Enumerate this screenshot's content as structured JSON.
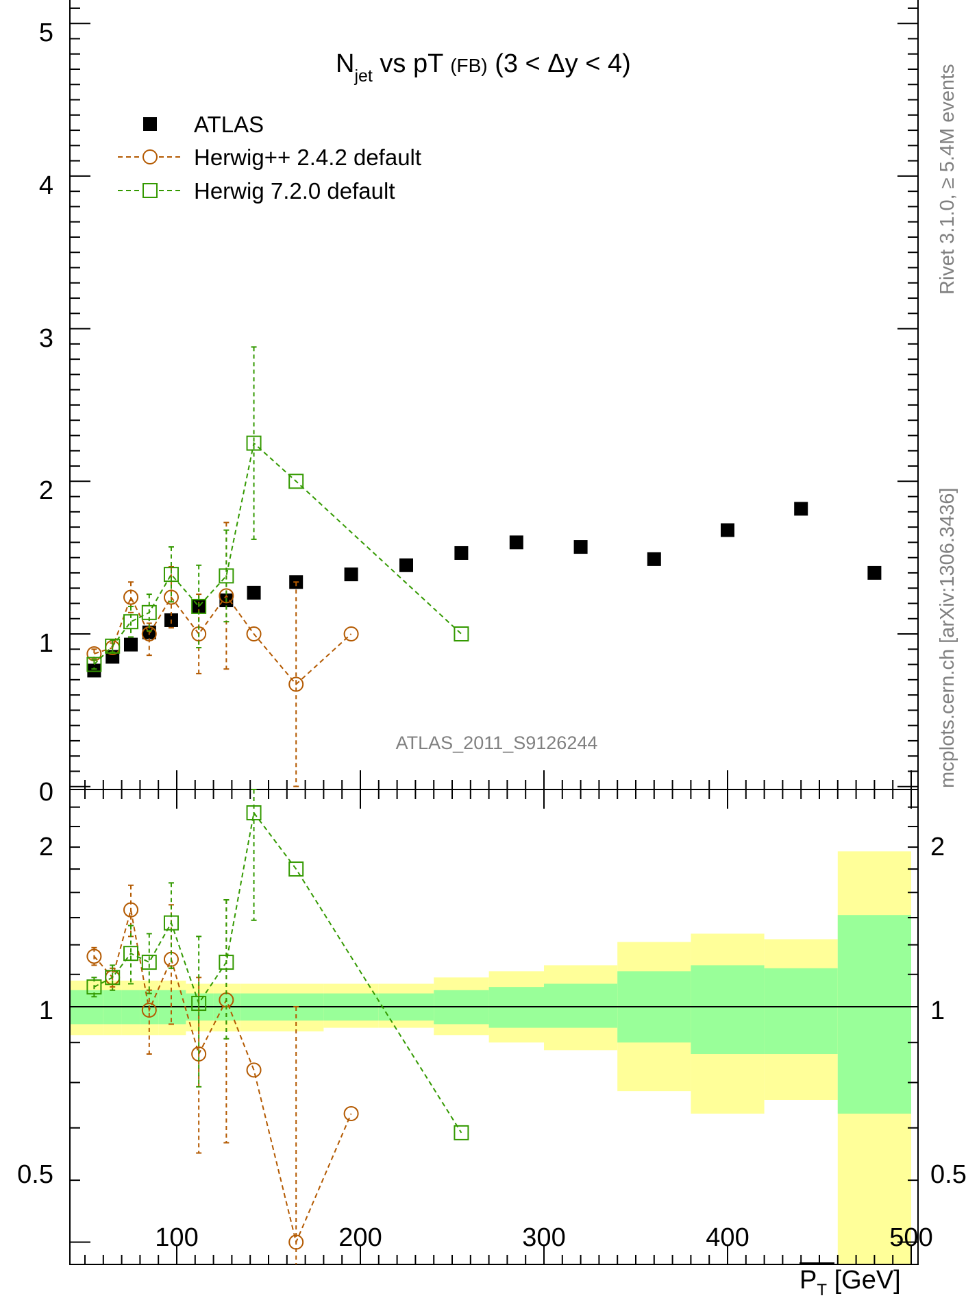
{
  "title": {
    "main": "N",
    "sub": "jet",
    "rest": " vs pT ",
    "small": "(FB)",
    "range": " (3 < Δy < 4)"
  },
  "watermark": "ATLAS_2011_S9126244",
  "side_labels": {
    "rivet": "Rivet 3.1.0, ≥ 5.4M events",
    "mcplots": "mcplots.cern.ch [arXiv:1306.3436]"
  },
  "x_axis": {
    "label_main": "P",
    "label_sub": "T",
    "label_unit": " [GeV]",
    "ticks": [
      "100",
      "200",
      "300",
      "400",
      "500"
    ]
  },
  "top_y_ticks": [
    "5",
    "4",
    "3",
    "2",
    "1",
    "0"
  ],
  "bottom_y_ticks": [
    "2",
    "1",
    "0.5"
  ],
  "legend": [
    {
      "label": "ATLAS",
      "marker": "filled-square",
      "color": "#000000"
    },
    {
      "label": "Herwig++ 2.4.2 default",
      "marker": "open-circle",
      "color": "#b35900"
    },
    {
      "label": "Herwig 7.2.0 default",
      "marker": "open-square",
      "color": "#339900"
    }
  ],
  "colors": {
    "atlas": "#000000",
    "herwigpp": "#b35900",
    "herwig7": "#339900",
    "band_inner": "#99ff99",
    "band_outer": "#ffff99"
  },
  "chart_data": [
    {
      "type": "scatter",
      "title": "N_jet vs pT (FB) (3 < Δy < 4)",
      "xlabel": "P_T [GeV]",
      "ylabel": "",
      "xlim": [
        45,
        505
      ],
      "ylim": [
        0,
        5.2
      ],
      "legend_position": "top-left",
      "series": [
        {
          "name": "ATLAS",
          "x": [
            55,
            65,
            75,
            85,
            97,
            112,
            127,
            142,
            165,
            195,
            225,
            255,
            285,
            320,
            360,
            400,
            440,
            480
          ],
          "y": [
            0.76,
            0.85,
            0.93,
            1.01,
            1.09,
            1.18,
            1.22,
            1.27,
            1.34,
            1.39,
            1.45,
            1.53,
            1.6,
            1.57,
            1.49,
            1.68,
            1.82,
            1.4
          ]
        },
        {
          "name": "Herwig++ 2.4.2 default",
          "x": [
            55,
            65,
            75,
            85,
            97,
            112,
            127,
            142,
            165,
            195
          ],
          "y": [
            0.87,
            0.91,
            1.24,
            1.0,
            1.24,
            1.0,
            1.25,
            1.0,
            0.67,
            1.0
          ],
          "yerr_lo": [
            0.03,
            0.03,
            0.1,
            0.14,
            0.2,
            0.26,
            0.48,
            0,
            0.67,
            0
          ],
          "yerr_hi": [
            0.03,
            0.03,
            0.1,
            0.07,
            0.2,
            0.26,
            0.48,
            0,
            0.67,
            0
          ]
        },
        {
          "name": "Herwig 7.2.0 default",
          "x": [
            55,
            65,
            75,
            85,
            97,
            112,
            127,
            142,
            165,
            255
          ],
          "y": [
            0.8,
            0.92,
            1.08,
            1.14,
            1.39,
            1.18,
            1.38,
            2.25,
            2.0,
            1.0
          ],
          "yerr_lo": [
            0.03,
            0.04,
            0.1,
            0.12,
            0.18,
            0.27,
            0.3,
            0.63,
            0,
            0
          ],
          "yerr_hi": [
            0.03,
            0.04,
            0.1,
            0.12,
            0.18,
            0.27,
            0.3,
            0.63,
            0,
            0
          ]
        }
      ]
    },
    {
      "type": "scatter",
      "title": "",
      "xlabel": "P_T [GeV]",
      "ylabel": "",
      "xlim": [
        45,
        505
      ],
      "ylim": [
        0.4,
        2.3
      ],
      "bands": {
        "edges": [
          40,
          60,
          70,
          80,
          90,
          105,
          120,
          135,
          150,
          180,
          210,
          240,
          270,
          300,
          340,
          380,
          420,
          460,
          500
        ],
        "inner_lo": [
          0.95,
          0.95,
          0.95,
          0.95,
          0.95,
          0.96,
          0.96,
          0.96,
          0.96,
          0.96,
          0.96,
          0.95,
          0.94,
          0.94,
          0.9,
          0.87,
          0.87,
          0.73
        ],
        "inner_hi": [
          1.05,
          1.05,
          1.05,
          1.05,
          1.05,
          1.04,
          1.04,
          1.04,
          1.04,
          1.04,
          1.04,
          1.05,
          1.06,
          1.07,
          1.11,
          1.13,
          1.12,
          1.31
        ],
        "outer_lo": [
          0.92,
          0.92,
          0.92,
          0.92,
          0.92,
          0.93,
          0.93,
          0.93,
          0.93,
          0.94,
          0.94,
          0.92,
          0.9,
          0.88,
          0.78,
          0.73,
          0.76,
          0.4
        ],
        "outer_hi": [
          1.08,
          1.08,
          1.08,
          1.08,
          1.08,
          1.07,
          1.07,
          1.07,
          1.07,
          1.07,
          1.07,
          1.09,
          1.11,
          1.13,
          1.21,
          1.24,
          1.22,
          1.58
        ]
      },
      "series": [
        {
          "name": "Herwig++ 2.4.2 default",
          "x": [
            55,
            65,
            75,
            85,
            97,
            112,
            127,
            142,
            165,
            195
          ],
          "y": [
            1.16,
            1.09,
            1.33,
            0.99,
            1.15,
            0.87,
            1.02,
            0.83,
            0.5,
            0.73
          ],
          "yerr_lo": [
            0.03,
            0.03,
            0.1,
            0.12,
            0.2,
            0.22,
            0.35,
            0,
            0.5,
            0
          ],
          "yerr_hi": [
            0.03,
            0.03,
            0.1,
            0.06,
            0.2,
            0.22,
            0.35,
            0,
            0.5,
            0
          ]
        },
        {
          "name": "Herwig 7.2.0 default",
          "x": [
            55,
            65,
            75,
            85,
            97,
            112,
            127,
            142,
            165,
            255
          ],
          "y": [
            1.06,
            1.09,
            1.17,
            1.14,
            1.28,
            1.01,
            1.14,
            1.77,
            1.5,
            0.69
          ],
          "yerr_lo": [
            0.03,
            0.04,
            0.1,
            0.1,
            0.16,
            0.22,
            0.23,
            0.48,
            0,
            0
          ],
          "yerr_hi": [
            0.03,
            0.04,
            0.1,
            0.1,
            0.16,
            0.22,
            0.23,
            0.48,
            0,
            0
          ]
        }
      ]
    }
  ]
}
